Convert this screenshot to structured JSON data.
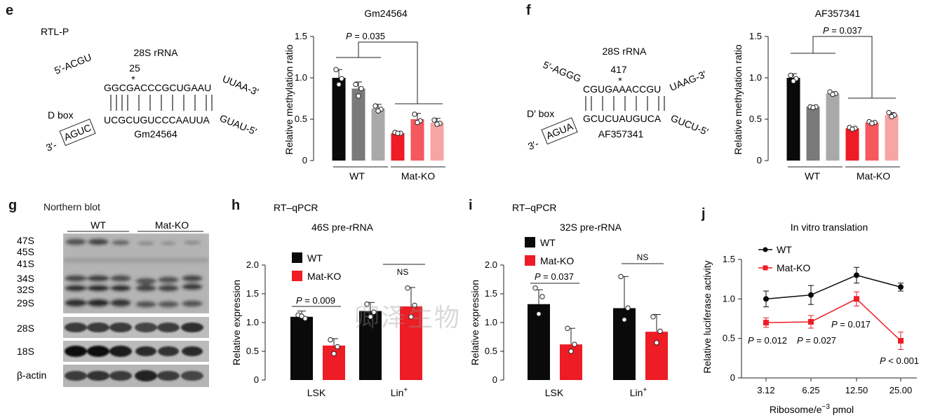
{
  "colors": {
    "black": "#0a0a0a",
    "dark_gray": "#7a7a7a",
    "light_gray": "#a9a9a9",
    "red": "#ee1c25",
    "mid_red": "#f5595e",
    "light_red": "#f7a4a4"
  },
  "watermark": "卿泽生物",
  "panel_e": {
    "label": "e",
    "subtitle": "RTL-P",
    "rrna": "28S rRNA",
    "position": "25",
    "star": "*",
    "top_left": "5′-ACGU",
    "top_seq": "GGCGACCCGCUGAAU",
    "top_right": "UUAA-3′",
    "box_label": "D box",
    "bottom_left": "3′-",
    "box_seq": "AGUC",
    "bottom_seq": "UCGCUGUCCCAAUUA",
    "bottom_right": "GUAU-5′",
    "snorna": "Gm24564"
  },
  "chart_e": {
    "title": "Gm24564",
    "ylabel": "Relative methylation ratio",
    "p_prefix": "P",
    "p_value": "= 0.035",
    "yticks": [
      "0",
      "0.5",
      "1.0",
      "1.5"
    ],
    "groups": [
      "WT",
      "Mat-KO"
    ]
  },
  "panel_f": {
    "label": "f",
    "rrna": "28S rRNA",
    "position": "417",
    "star": "*",
    "top_left": "5′-AGGG",
    "top_seq": "CGUGAAACCGU",
    "top_right": "UAAG-3′",
    "box_label": "D′ box",
    "bottom_left": "3′-",
    "box_seq": "AGUA",
    "bottom_seq": "GCUCUAUGUCA",
    "bottom_right": "GUCU-5′",
    "snorna": "AF357341"
  },
  "chart_f": {
    "title": "AF357341",
    "ylabel": "Relative methylation ratio",
    "p_prefix": "P",
    "p_value": "= 0.037",
    "yticks": [
      "0",
      "0.5",
      "1.0",
      "1.5"
    ],
    "groups": [
      "WT",
      "Mat-KO"
    ]
  },
  "panel_g": {
    "label": "g",
    "title": "Northern blot",
    "groups": [
      "WT",
      "Mat-KO"
    ],
    "bands_main": [
      "47S",
      "45S",
      "41S",
      "34S",
      "32S",
      "29S"
    ],
    "band_28s": "28S",
    "band_18s": "18S",
    "band_actin": "β-actin"
  },
  "chart_h": {
    "label": "h",
    "method": "RT–qPCR",
    "title": "46S pre-rRNA",
    "ylabel": "Relative expression",
    "legend": [
      "WT",
      "Mat-KO"
    ],
    "x_lsk": "LSK",
    "x_lin": "Lin",
    "x_sup": "+",
    "p_prefix": "P",
    "p_value": "= 0.009",
    "ns": "NS",
    "yticks": [
      "0",
      "0.5",
      "1.0",
      "1.5",
      "2.0"
    ]
  },
  "chart_i": {
    "label": "i",
    "method": "RT–qPCR",
    "title": "32S pre-rRNA",
    "ylabel": "Relative expression",
    "legend": [
      "WT",
      "Mat-KO"
    ],
    "x_lsk": "LSK",
    "x_lin": "Lin",
    "x_sup": "+",
    "p_prefix": "P",
    "p_value": "= 0.037",
    "ns": "NS",
    "yticks": [
      "0",
      "0.5",
      "1.0",
      "1.5",
      "2.0"
    ]
  },
  "chart_j": {
    "label": "j",
    "title": "In vitro translation",
    "ylabel": "Relative luciferase activity",
    "xlabel_main": "Ribosome/e",
    "xlabel_sup": "−3",
    "xlabel_unit": " pmol",
    "legend": [
      "WT",
      "Mat-KO"
    ],
    "xticks": [
      "3.12",
      "6.25",
      "12.50",
      "25.00"
    ],
    "yticks": [
      "0",
      "0.5",
      "1.0",
      "1.5"
    ],
    "pvals": [
      {
        "p": "P",
        "v": "= 0.012"
      },
      {
        "p": "P",
        "v": "= 0.027"
      },
      {
        "p": "P",
        "v": "= 0.017"
      },
      {
        "p": "P",
        "v": "< 0.001"
      }
    ]
  },
  "chart_data": [
    {
      "type": "bar",
      "title": "Gm24564",
      "ylabel": "Relative methylation ratio",
      "ylim": [
        0,
        1.5
      ],
      "categories": [
        "WT-1",
        "WT-2",
        "WT-3",
        "Mat-KO-1",
        "Mat-KO-2",
        "Mat-KO-3"
      ],
      "values": [
        1.0,
        0.87,
        0.63,
        0.33,
        0.5,
        0.46
      ],
      "errors": [
        0.1,
        0.08,
        0.05,
        0.02,
        0.07,
        0.05
      ],
      "points": [
        [
          1.1,
          0.99,
          0.92
        ],
        [
          0.92,
          0.87,
          0.78
        ],
        [
          0.66,
          0.62,
          0.6
        ],
        [
          0.34,
          0.33,
          0.33
        ],
        [
          0.56,
          0.48,
          0.46
        ],
        [
          0.49,
          0.45,
          0.44
        ]
      ]
    },
    {
      "type": "bar",
      "title": "AF357341",
      "ylabel": "Relative methylation ratio",
      "ylim": [
        0,
        1.5
      ],
      "categories": [
        "WT-1",
        "WT-2",
        "WT-3",
        "Mat-KO-1",
        "Mat-KO-2",
        "Mat-KO-3"
      ],
      "values": [
        1.0,
        0.65,
        0.81,
        0.39,
        0.46,
        0.55
      ],
      "errors": [
        0.05,
        0.01,
        0.02,
        0.01,
        0.01,
        0.03
      ],
      "points": [
        [
          1.03,
          0.99,
          0.96
        ],
        [
          0.65,
          0.65,
          0.64
        ],
        [
          0.83,
          0.81,
          0.8
        ],
        [
          0.4,
          0.39,
          0.38
        ],
        [
          0.47,
          0.46,
          0.45
        ],
        [
          0.58,
          0.55,
          0.53
        ]
      ]
    },
    {
      "type": "bar",
      "title": "46S pre-rRNA",
      "ylabel": "Relative expression",
      "ylim": [
        0,
        2.0
      ],
      "categories": [
        "LSK",
        "Lin+"
      ],
      "series": [
        {
          "name": "WT",
          "values": [
            1.1,
            1.2
          ],
          "errors": [
            0.1,
            0.15
          ],
          "points": [
            [
              1.13,
              1.07,
              1.11
            ],
            [
              1.32,
              1.18,
              1.1
            ]
          ]
        },
        {
          "name": "Mat-KO",
          "values": [
            0.6,
            1.28
          ],
          "errors": [
            0.12,
            0.33
          ],
          "points": [
            [
              0.7,
              0.58,
              0.46
            ],
            [
              1.6,
              1.3,
              1.1
            ]
          ]
        }
      ]
    },
    {
      "type": "bar",
      "title": "32S pre-rRNA",
      "ylabel": "Relative expression",
      "ylim": [
        0,
        2.0
      ],
      "categories": [
        "LSK",
        "Lin+"
      ],
      "series": [
        {
          "name": "WT",
          "values": [
            1.32,
            1.25
          ],
          "errors": [
            0.25,
            0.55
          ],
          "points": [
            [
              1.6,
              1.45,
              1.15
            ],
            [
              1.8,
              1.25,
              1.05
            ]
          ]
        },
        {
          "name": "Mat-KO",
          "values": [
            0.62,
            0.84
          ],
          "errors": [
            0.28,
            0.3
          ],
          "points": [
            [
              0.9,
              0.62,
              0.5
            ],
            [
              1.1,
              0.85,
              0.65
            ]
          ]
        }
      ]
    },
    {
      "type": "line",
      "title": "In vitro translation",
      "xlabel": "Ribosome/e−3 pmol",
      "ylabel": "Relative luciferase activity",
      "ylim": [
        0,
        1.5
      ],
      "categories": [
        "3.12",
        "6.25",
        "12.50",
        "25.00"
      ],
      "series": [
        {
          "name": "WT",
          "values": [
            1.0,
            1.05,
            1.3,
            1.15
          ],
          "errors": [
            0.1,
            0.12,
            0.1,
            0.05
          ]
        },
        {
          "name": "Mat-KO",
          "values": [
            0.7,
            0.71,
            1.0,
            0.47
          ],
          "errors": [
            0.06,
            0.08,
            0.09,
            0.11
          ]
        }
      ]
    }
  ]
}
